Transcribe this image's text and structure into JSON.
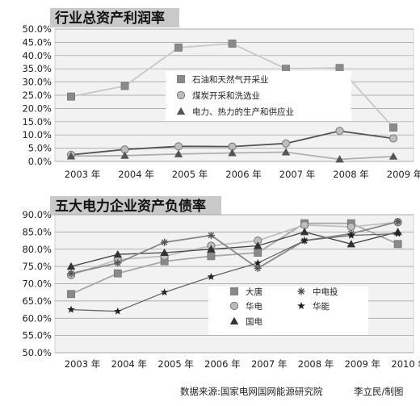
{
  "footer": {
    "source": "数据来源:国家电网国网能源研究院",
    "credit": "李立民/制图"
  },
  "chart_data": [
    {
      "type": "line",
      "title": "行业总资产利润率",
      "categories": [
        "2003 年",
        "2004 年",
        "2005 年",
        "2006 年",
        "2007 年",
        "2008 年",
        "2009 年"
      ],
      "ylim": [
        0,
        50
      ],
      "yticks": [
        "0.0%",
        "5.0%",
        "10.0%",
        "15.0%",
        "20.0%",
        "25.0%",
        "30.0%",
        "35.0%",
        "40.0%",
        "45.0%",
        "50.0%"
      ],
      "grid": true,
      "legend": "center-right",
      "series": [
        {
          "name": "石油和天然气开采业",
          "marker": "square",
          "color": "#c8c8c8",
          "markerColor": "#8a8a8a",
          "values": [
            24.5,
            28.5,
            43.0,
            44.5,
            35.0,
            35.3,
            12.8
          ]
        },
        {
          "name": "煤炭开采和洗选业",
          "marker": "circle",
          "color": "#555555",
          "markerColor": "#bdbdbd",
          "values": [
            2.5,
            4.5,
            5.7,
            5.6,
            6.8,
            11.5,
            8.7
          ]
        },
        {
          "name": "电力、热力的生产和供应业",
          "marker": "triangle",
          "color": "#b0b0b0",
          "markerColor": "#555555",
          "values": [
            2.0,
            2.2,
            2.8,
            3.2,
            3.5,
            0.8,
            1.9
          ]
        }
      ]
    },
    {
      "type": "line",
      "title": "五大电力企业资产负债率",
      "categories": [
        "2003 年",
        "2004 年",
        "2005 年",
        "2006 年",
        "2007 年",
        "2008 年",
        "2009 年",
        "2010 年"
      ],
      "ylim": [
        50,
        90
      ],
      "yticks": [
        "50.0%",
        "55.0%",
        "60.0%",
        "65.0%",
        "70.0%",
        "75.0%",
        "80.0%",
        "85.0%",
        "90.0%"
      ],
      "grid": true,
      "legend": "bottom-right",
      "series": [
        {
          "name": "大唐",
          "marker": "square",
          "color": "#a8a8a8",
          "markerColor": "#8a8a8a",
          "values": [
            67.0,
            73.0,
            76.5,
            78.0,
            79.0,
            87.5,
            87.5,
            81.5
          ]
        },
        {
          "name": "华电",
          "marker": "circle",
          "color": "#c0c0c0",
          "markerColor": "#bdbdbd",
          "values": [
            72.5,
            77.0,
            78.0,
            81.0,
            82.5,
            87.0,
            86.5,
            87.8
          ]
        },
        {
          "name": "国电",
          "marker": "triangle",
          "color": "#444444",
          "markerColor": "#333333",
          "values": [
            75.0,
            78.5,
            79.0,
            80.0,
            81.0,
            85.0,
            81.5,
            85.0
          ]
        },
        {
          "name": "中电投",
          "marker": "asterisk",
          "color": "#888888",
          "markerColor": "#555555",
          "values": [
            73.0,
            76.0,
            82.0,
            84.0,
            74.5,
            82.5,
            84.5,
            88.0
          ]
        },
        {
          "name": "华能",
          "marker": "star",
          "color": "#666666",
          "markerColor": "#222222",
          "values": [
            62.5,
            62.0,
            67.5,
            72.0,
            76.0,
            82.5,
            84.0,
            84.5
          ]
        }
      ]
    }
  ]
}
